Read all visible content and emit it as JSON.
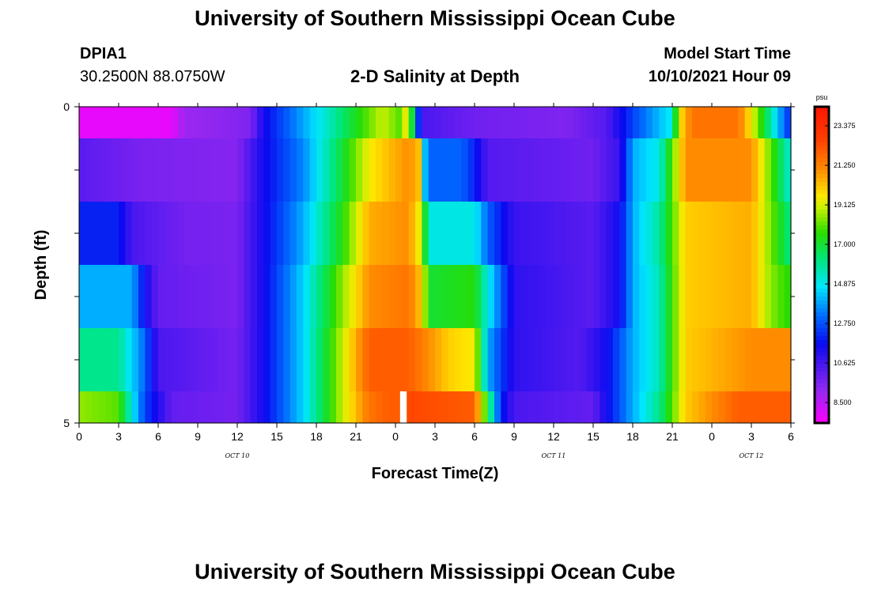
{
  "header": {
    "title": "University of Southern Mississippi Ocean Cube",
    "footer_title": "University of Southern Mississippi Ocean Cube",
    "station_id": "DPIA1",
    "station_coords": "30.2500N  88.0750W",
    "subtitle": "2-D Salinity at Depth",
    "model_start_label": "Model Start Time",
    "model_start_value": "10/10/2021 Hour 09"
  },
  "chart_data": {
    "type": "heatmap",
    "title": "2-D Salinity at Depth",
    "xlabel": "Forecast Time(Z)",
    "ylabel": "Depth (ft)",
    "x_ticks": [
      "0",
      "3",
      "6",
      "9",
      "12",
      "15",
      "18",
      "21",
      "0",
      "3",
      "6",
      "9",
      "12",
      "15",
      "18",
      "21",
      "0",
      "3",
      "6"
    ],
    "date_labels": [
      "OCT 10",
      "OCT 11",
      "OCT 12"
    ],
    "y_ticks": [
      "0",
      "5"
    ],
    "ylim": [
      0,
      5
    ],
    "x_range_hours": [
      0,
      54
    ],
    "x_resolution_hours": 0.5,
    "depth_levels": 5,
    "colorbar": {
      "unit": "psu",
      "min": 7.4,
      "max": 24.4,
      "labels": [
        "23.375",
        "21.250",
        "19.125",
        "17.000",
        "14.875",
        "12.750",
        "10.625",
        "8.500"
      ],
      "label_values": [
        23.375,
        21.25,
        19.125,
        17.0,
        14.875,
        12.75,
        10.625,
        8.5
      ]
    },
    "rows": [
      {
        "depth_range": [
          0,
          0.5
        ],
        "knots": [
          [
            0,
            7.8
          ],
          [
            7,
            7.8
          ],
          [
            8,
            9.0
          ],
          [
            13,
            9.5
          ],
          [
            14,
            11.5
          ],
          [
            19,
            15.5
          ],
          [
            23,
            19
          ],
          [
            24.3,
            18
          ],
          [
            25,
            20
          ],
          [
            25.5,
            14
          ],
          [
            26,
            10.5
          ],
          [
            30,
            9.8
          ],
          [
            37,
            9.5
          ],
          [
            40,
            10.3
          ],
          [
            42,
            12.5
          ],
          [
            45,
            15
          ],
          [
            45.5,
            19.5
          ],
          [
            46.5,
            21.5
          ],
          [
            50,
            21.5
          ],
          [
            51,
            19.5
          ],
          [
            52,
            17
          ],
          [
            53.5,
            13
          ],
          [
            54,
            12
          ]
        ]
      },
      {
        "depth_range": [
          0.5,
          1.5
        ],
        "knots": [
          [
            0,
            10.2
          ],
          [
            5,
            9.6
          ],
          [
            12,
            9.4
          ],
          [
            14,
            11.5
          ],
          [
            17,
            13.5
          ],
          [
            20,
            17
          ],
          [
            22,
            19.5
          ],
          [
            25,
            21
          ],
          [
            26,
            20
          ],
          [
            26.3,
            13
          ],
          [
            29,
            13
          ],
          [
            30,
            12
          ],
          [
            31,
            10.3
          ],
          [
            39,
            9.8
          ],
          [
            41,
            10.8
          ],
          [
            42,
            14
          ],
          [
            44,
            15
          ],
          [
            45,
            18
          ],
          [
            46,
            21
          ],
          [
            51,
            21
          ],
          [
            52,
            19
          ],
          [
            53,
            17
          ],
          [
            54,
            15
          ]
        ]
      },
      {
        "depth_range": [
          1.5,
          2.5
        ],
        "knots": [
          [
            0,
            12
          ],
          [
            3,
            12
          ],
          [
            4,
            10.5
          ],
          [
            8,
            9.7
          ],
          [
            12,
            9.6
          ],
          [
            14,
            11.5
          ],
          [
            17,
            14
          ],
          [
            20,
            17.5
          ],
          [
            22,
            20.5
          ],
          [
            25,
            21
          ],
          [
            26,
            19
          ],
          [
            26.5,
            15
          ],
          [
            30,
            15
          ],
          [
            31,
            13
          ],
          [
            33,
            10.8
          ],
          [
            39,
            10.2
          ],
          [
            41,
            11.5
          ],
          [
            42,
            14
          ],
          [
            44,
            15.8
          ],
          [
            46,
            20
          ],
          [
            51,
            20.5
          ],
          [
            52,
            19
          ],
          [
            53,
            17.5
          ],
          [
            54,
            16
          ]
        ]
      },
      {
        "depth_range": [
          2.5,
          3.5
        ],
        "knots": [
          [
            0,
            14
          ],
          [
            4,
            14
          ],
          [
            5,
            11.5
          ],
          [
            6,
            10
          ],
          [
            12,
            9.6
          ],
          [
            14,
            11.5
          ],
          [
            17,
            14.5
          ],
          [
            20,
            18.5
          ],
          [
            22,
            21
          ],
          [
            25,
            21.5
          ],
          [
            26,
            20
          ],
          [
            26.5,
            17
          ],
          [
            30,
            17.5
          ],
          [
            31,
            15
          ],
          [
            33,
            11
          ],
          [
            39,
            10.2
          ],
          [
            41,
            11.5
          ],
          [
            42,
            14
          ],
          [
            44,
            15.5
          ],
          [
            46,
            20
          ],
          [
            51,
            20.5
          ],
          [
            52,
            19
          ],
          [
            53,
            18
          ],
          [
            54,
            17.5
          ]
        ]
      },
      {
        "depth_range": [
          3.5,
          4.5
        ],
        "knots": [
          [
            0,
            16
          ],
          [
            3,
            16
          ],
          [
            5,
            13
          ],
          [
            6,
            10.5
          ],
          [
            12,
            9.7
          ],
          [
            14,
            11.5
          ],
          [
            17,
            14.5
          ],
          [
            20,
            19
          ],
          [
            22,
            22
          ],
          [
            25,
            22
          ],
          [
            28,
            20
          ],
          [
            30,
            19.5
          ],
          [
            31,
            14
          ],
          [
            33,
            11
          ],
          [
            38,
            10.3
          ],
          [
            40,
            11.5
          ],
          [
            42,
            14
          ],
          [
            44,
            15.5
          ],
          [
            46,
            20
          ],
          [
            51,
            21
          ],
          [
            54,
            21
          ]
        ]
      },
      {
        "depth_range": [
          4.5,
          5
        ],
        "knots": [
          [
            0,
            18.5
          ],
          [
            3,
            18
          ],
          [
            4,
            15
          ],
          [
            5,
            12.5
          ],
          [
            7,
            10
          ],
          [
            12,
            9.7
          ],
          [
            14,
            11.5
          ],
          [
            17,
            14.5
          ],
          [
            20,
            19
          ],
          [
            22,
            21.5
          ],
          [
            23.5,
            22
          ],
          [
            24.3,
            22
          ],
          [
            25,
            22.5
          ],
          [
            30,
            22
          ],
          [
            31,
            17
          ],
          [
            32,
            12
          ],
          [
            33,
            10.5
          ],
          [
            39,
            10
          ],
          [
            40,
            11.5
          ],
          [
            42,
            14
          ],
          [
            44,
            16
          ],
          [
            46,
            20
          ],
          [
            50,
            22
          ],
          [
            54,
            22
          ]
        ]
      }
    ]
  }
}
